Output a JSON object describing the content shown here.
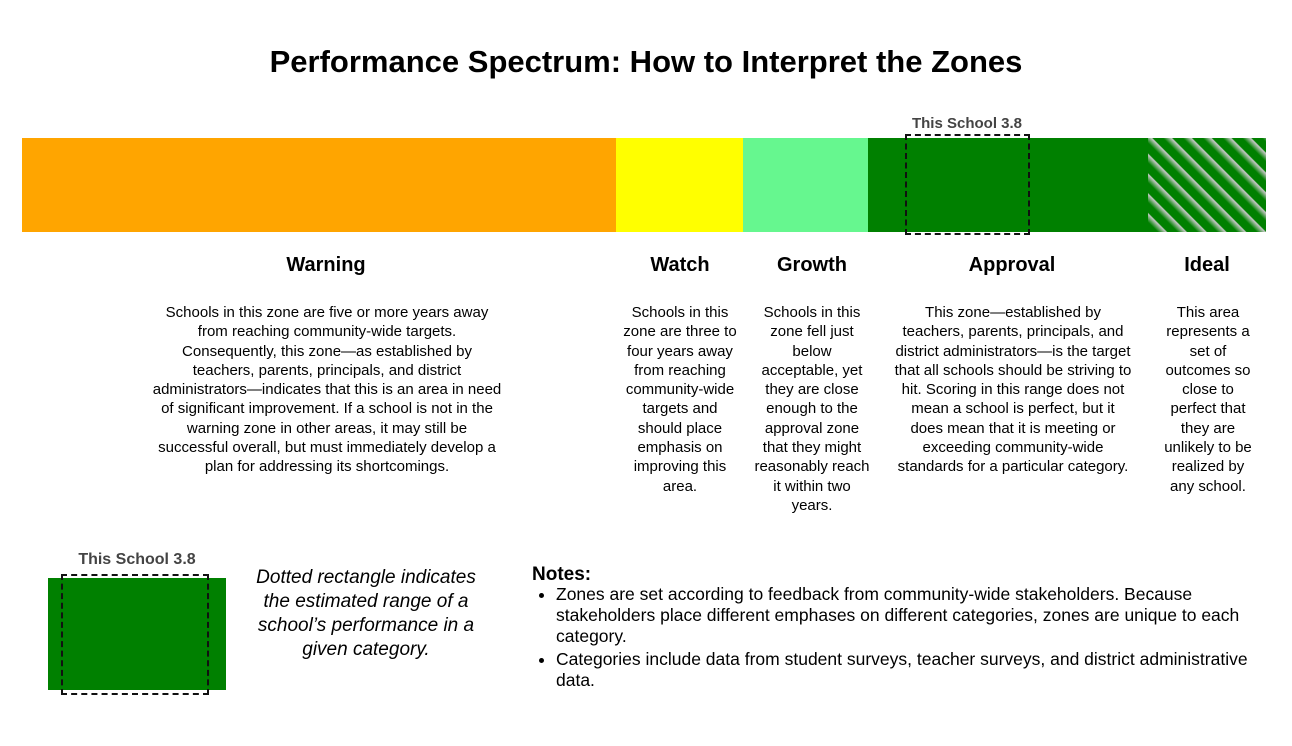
{
  "title": "Performance Spectrum: How to Interpret the Zones",
  "colors": {
    "warning": "#ffa500",
    "watch": "#ffff00",
    "growth": "#66f78f",
    "approval": "#008000",
    "ideal": "hatched-green"
  },
  "marker": {
    "label": "This School 3.8"
  },
  "zones": [
    {
      "name": "Warning",
      "description": "Schools in this zone are five or more years away from reaching community-wide targets. Consequently, this zone—as established by teachers, parents, principals, and district administrators—indicates that this is an area in need of significant improvement. If a school is not in the warning zone in other areas, it may still be successful overall, but must immediately develop a plan for addressing its shortcomings."
    },
    {
      "name": "Watch",
      "description": "Schools in this zone are three to four years away from reaching community-wide targets and should place emphasis on improving this area."
    },
    {
      "name": "Growth",
      "description": "Schools in this zone fell just below acceptable, yet they are close enough to the approval zone that they might reasonably reach it within two years."
    },
    {
      "name": "Approval",
      "description": "This zone—established by teachers, parents, principals, and district administrators—is the target that all schools should be striving to hit. Scoring in this range does not mean a school is perfect, but it does mean that it is meeting or exceeding community-wide standards for a particular category."
    },
    {
      "name": "Ideal",
      "description": "This area represents a set of outcomes so close to perfect that they are unlikely to be realized by any school."
    }
  ],
  "legend": {
    "label": "This School 3.8",
    "text": "Dotted rectangle indicates the estimated range of a school’s performance in a given category."
  },
  "notes": {
    "title": "Notes:",
    "items": [
      "Zones are set according to feedback from community-wide stakeholders. Because stakeholders place different emphases on different categories, zones are unique to each category.",
      "Categories include data from student surveys, teacher surveys, and district administrative data."
    ]
  }
}
